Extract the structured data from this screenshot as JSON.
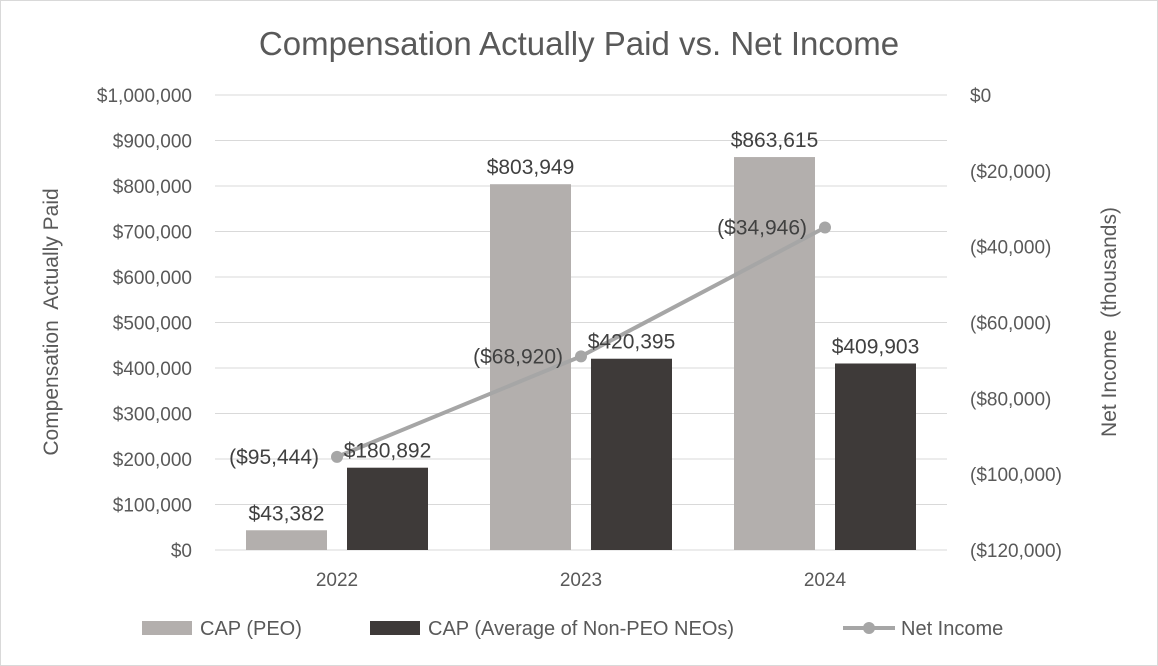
{
  "chart_data": {
    "type": "bar",
    "title": "Compensation Actually Paid vs. Net Income",
    "categories": [
      "2022",
      "2023",
      "2024"
    ],
    "ylabel": "Compensation  Actually Paid",
    "y2label": "Net Income  (thousands)",
    "ylim": [
      0,
      1000000
    ],
    "y2lim": [
      -120000,
      0
    ],
    "yticks": [
      "$0",
      "$100,000",
      "$200,000",
      "$300,000",
      "$400,000",
      "$500,000",
      "$600,000",
      "$700,000",
      "$800,000",
      "$900,000",
      "$1,000,000"
    ],
    "y2ticks": [
      "($120,000)",
      "($100,000)",
      "($80,000)",
      "($60,000)",
      "($40,000)",
      "($20,000)",
      "$0"
    ],
    "series": [
      {
        "name": "CAP (PEO)",
        "kind": "bar",
        "axis": "left",
        "color": "#b3afad",
        "values": [
          43382,
          803949,
          863615
        ],
        "labels": [
          "$43,382",
          "$803,949",
          "$863,615"
        ]
      },
      {
        "name": "CAP (Average of Non-PEO NEOs)",
        "kind": "bar",
        "axis": "left",
        "color": "#3e3a39",
        "values": [
          180892,
          420395,
          409903
        ],
        "labels": [
          "$180,892",
          "$420,395",
          "$409,903"
        ]
      },
      {
        "name": "Net Income",
        "kind": "line",
        "axis": "right",
        "color": "#a6a6a6",
        "values": [
          -95444,
          -68920,
          -34946
        ],
        "labels": [
          "($95,444)",
          "($68,920)",
          "($34,946)"
        ]
      }
    ],
    "grid": true,
    "legend_position": "bottom"
  }
}
